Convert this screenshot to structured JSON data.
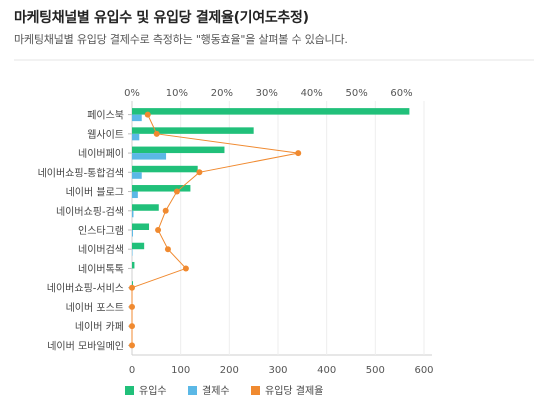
{
  "page": {
    "title": "마케팅채널별 유입수 및 유입당 결제율(기여도추정)",
    "subtitle": "마케팅채널별 유입당 결제수로 측정하는 \"행동효율\"을 살펴볼 수 있습니다."
  },
  "chart_data": {
    "type": "bar",
    "orientation": "horizontal",
    "title": "마케팅채널별 유입수 및 유입당 결제율(기여도추정)",
    "subtitle": "마케팅채널별 유입당 결제수로 측정하는 \"행동효율\"을 살펴볼 수 있습니다.",
    "categories": [
      "페이스북",
      "웹사이트",
      "네이버페이",
      "네이버쇼핑-통합검색",
      "네이버 블로그",
      "네이버쇼핑-검색",
      "인스타그램",
      "네이버검색",
      "네이버톡톡",
      "네이버쇼핑-서비스",
      "네이버 포스트",
      "네이버 카페",
      "네이버 모바일메인"
    ],
    "x_bottom": {
      "range": [
        0,
        600
      ],
      "ticks": [
        "0",
        "100",
        "200",
        "300",
        "400",
        "500",
        "600"
      ]
    },
    "x_top": {
      "range": [
        0,
        0.65
      ],
      "ticks": [
        "0%",
        "10%",
        "20%",
        "30%",
        "40%",
        "50%",
        "60%"
      ]
    },
    "series": [
      {
        "name": "유입수",
        "color": "#21c07a",
        "axis": "bottom",
        "values": [
          570,
          250,
          190,
          135,
          120,
          55,
          35,
          25,
          5,
          2,
          1,
          0,
          0
        ]
      },
      {
        "name": "결제수",
        "color": "#5bb8e6",
        "axis": "bottom",
        "values": [
          20,
          15,
          70,
          20,
          12,
          3,
          2,
          1,
          0,
          0,
          0,
          0,
          0
        ]
      },
      {
        "name": "유입당 결제율",
        "color": "#f08a30",
        "axis": "top",
        "type": "line",
        "values": [
          0.035,
          0.055,
          0.37,
          0.15,
          0.1,
          0.075,
          0.058,
          0.08,
          0.12,
          0.0,
          0.0,
          0.0,
          0.0
        ]
      }
    ],
    "grid": true,
    "legend": "bottom-left"
  }
}
